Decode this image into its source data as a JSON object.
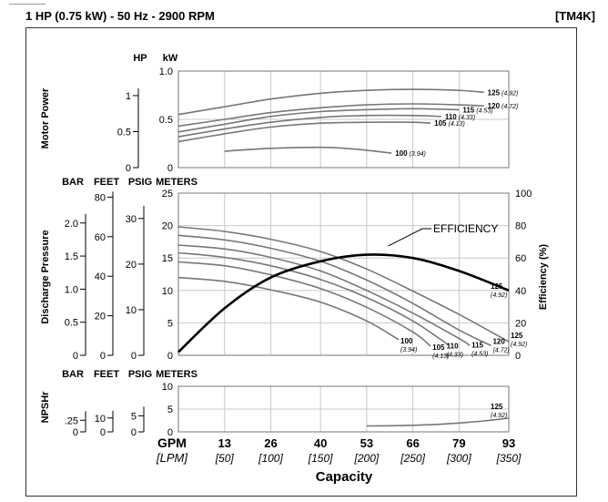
{
  "header": {
    "title": "1 HP (0.75 kW) - 50 Hz - 2900 RPM",
    "code": "[TM4K]"
  },
  "chart_data": [
    {
      "panel": "Motor Power",
      "type": "line",
      "ylabel": "Motor Power",
      "axes": [
        {
          "title": "HP",
          "ticks": [
            "1",
            "0.5",
            "0"
          ]
        },
        {
          "title": "kW",
          "ticks": [
            "1.0",
            "0.5",
            "0"
          ]
        }
      ],
      "ylim_kw": [
        0,
        1.0
      ],
      "series": [
        {
          "name": "125",
          "sub": "(4.92)",
          "x": [
            0,
            13,
            26,
            40,
            53,
            66,
            79,
            86
          ],
          "y": [
            0.55,
            0.63,
            0.71,
            0.77,
            0.8,
            0.81,
            0.8,
            0.78
          ]
        },
        {
          "name": "120",
          "sub": "(4.72)",
          "x": [
            0,
            13,
            26,
            40,
            53,
            66,
            79,
            86
          ],
          "y": [
            0.43,
            0.5,
            0.57,
            0.62,
            0.65,
            0.66,
            0.65,
            0.64
          ]
        },
        {
          "name": "115",
          "sub": "(4.53)",
          "x": [
            0,
            13,
            26,
            40,
            53,
            66,
            79
          ],
          "y": [
            0.37,
            0.45,
            0.53,
            0.58,
            0.6,
            0.61,
            0.6
          ]
        },
        {
          "name": "110",
          "sub": "(4.33)",
          "x": [
            0,
            13,
            26,
            40,
            53,
            66,
            74
          ],
          "y": [
            0.32,
            0.4,
            0.47,
            0.52,
            0.54,
            0.54,
            0.53
          ]
        },
        {
          "name": "105",
          "sub": "(4.13)",
          "x": [
            0,
            13,
            26,
            40,
            53,
            66,
            71
          ],
          "y": [
            0.27,
            0.35,
            0.42,
            0.46,
            0.47,
            0.47,
            0.46
          ]
        },
        {
          "name": "100",
          "sub": "(3.94)",
          "x": [
            13,
            26,
            40,
            47,
            53,
            60
          ],
          "y": [
            0.17,
            0.2,
            0.21,
            0.2,
            0.18,
            0.15
          ]
        }
      ]
    },
    {
      "panel": "Discharge Pressure",
      "type": "line",
      "ylabel": "Discharge Pressure",
      "y2label": "Efficiency (%)",
      "axes": [
        {
          "title": "BAR",
          "ticks": [
            "2.0",
            "1.5",
            "1.0",
            "0.5",
            "0"
          ]
        },
        {
          "title": "FEET",
          "ticks": [
            "80",
            "60",
            "40",
            "20",
            "0"
          ]
        },
        {
          "title": "PSIG",
          "ticks": [
            "30",
            "20",
            "10",
            "0"
          ]
        },
        {
          "title": "METERS",
          "ticks": [
            "25",
            "20",
            "15",
            "10",
            "5",
            "0"
          ]
        },
        {
          "title": "",
          "ticks": [
            "100",
            "80",
            "60",
            "40",
            "20",
            "0"
          ]
        }
      ],
      "ylim_meters": [
        0,
        25
      ],
      "ylim_efficiency": [
        0,
        100
      ],
      "annotation": "EFFICIENCY",
      "efficiency": {
        "name": "125",
        "sub": "(4.92)",
        "x": [
          0,
          13,
          26,
          40,
          53,
          66,
          79,
          93
        ],
        "y": [
          2,
          29,
          48,
          58,
          62,
          60,
          52,
          40
        ]
      },
      "series": [
        {
          "name": "125",
          "sub": "(4.92)",
          "x": [
            0,
            13,
            26,
            40,
            53,
            66,
            79,
            93
          ],
          "y": [
            19.8,
            19.1,
            17.9,
            16.0,
            13.3,
            9.9,
            6.3,
            2.1
          ]
        },
        {
          "name": "120",
          "sub": "(4.72)",
          "x": [
            0,
            13,
            26,
            40,
            53,
            66,
            79,
            88
          ],
          "y": [
            18.5,
            17.8,
            16.5,
            14.5,
            11.6,
            8.0,
            3.9,
            1.5
          ]
        },
        {
          "name": "115",
          "sub": "(4.53)",
          "x": [
            0,
            13,
            26,
            40,
            53,
            66,
            79,
            82
          ],
          "y": [
            17.0,
            16.4,
            15.1,
            13.0,
            10.0,
            6.5,
            2.6,
            1.5
          ]
        },
        {
          "name": "110",
          "sub": "(4.33)",
          "x": [
            0,
            13,
            26,
            40,
            53,
            66,
            76
          ],
          "y": [
            15.8,
            15.1,
            13.8,
            11.7,
            8.9,
            5.3,
            1.6
          ]
        },
        {
          "name": "105",
          "sub": "(4.13)",
          "x": [
            0,
            13,
            26,
            40,
            53,
            66,
            71
          ],
          "y": [
            14.4,
            13.8,
            12.4,
            10.3,
            7.4,
            3.6,
            1.4
          ]
        },
        {
          "name": "100",
          "sub": "(3.94)",
          "x": [
            0,
            13,
            26,
            40,
            53,
            62
          ],
          "y": [
            12.0,
            11.4,
            10.1,
            8.2,
            5.3,
            2.4
          ]
        }
      ]
    },
    {
      "panel": "NPSHr",
      "type": "line",
      "ylabel": "NPSHr",
      "axes": [
        {
          "title": "BAR",
          "ticks": [
            ".25",
            "0"
          ]
        },
        {
          "title": "FEET",
          "ticks": [
            "10",
            "0"
          ]
        },
        {
          "title": "PSIG",
          "ticks": [
            "5",
            "0"
          ]
        },
        {
          "title": "METERS",
          "ticks": [
            "10",
            "5",
            "0"
          ]
        }
      ],
      "ylim_meters": [
        0,
        10
      ],
      "series": [
        {
          "name": "125",
          "sub": "(4.92)",
          "x": [
            53,
            60,
            66,
            73,
            79,
            86,
            93
          ],
          "y": [
            1.3,
            1.35,
            1.45,
            1.65,
            1.95,
            2.4,
            3.0
          ]
        }
      ]
    }
  ],
  "x_axis": {
    "gpm_label": "GPM",
    "lpm_label": "[LPM]",
    "gpm": [
      "13",
      "26",
      "40",
      "53",
      "66",
      "79",
      "93"
    ],
    "lpm": [
      "[50]",
      "[100]",
      "[150]",
      "[200]",
      "[250]",
      "[300]",
      "[350]"
    ],
    "title": "Capacity",
    "xlim": [
      0,
      93
    ]
  },
  "colors": {
    "curve": "#777777",
    "efficiency": "#000000",
    "grid": "#c8c8c8",
    "frame": "#333333"
  }
}
